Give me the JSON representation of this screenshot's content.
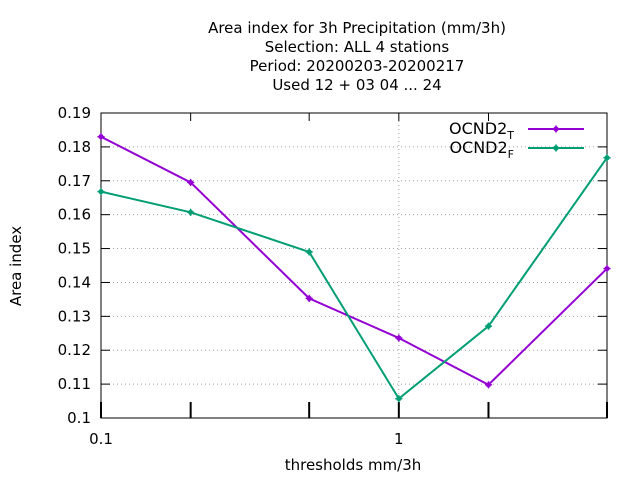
{
  "chart_data": {
    "type": "line",
    "title_lines": [
      "Area index  for 3h Precipitation (mm/3h)",
      "Selection: ALL      4 stations",
      "Period: 20200203-20200217",
      "Used  12 + 03 04 ... 24"
    ],
    "xlabel": "thresholds mm/3h",
    "ylabel": "Area index",
    "x_scale": "log",
    "xlim": [
      0.1,
      5
    ],
    "ylim": [
      0.1,
      0.19
    ],
    "yticks": [
      0.1,
      0.11,
      0.12,
      0.13,
      0.14,
      0.15,
      0.16,
      0.17,
      0.18,
      0.19
    ],
    "ytick_labels": [
      "0.1",
      "0.11",
      "0.12",
      "0.13",
      "0.14",
      "0.15",
      "0.16",
      "0.17",
      "0.18",
      "0.19"
    ],
    "xtick_labels": [
      {
        "value": 0.1,
        "label": "0.1"
      },
      {
        "value": 1,
        "label": "1"
      }
    ],
    "xtick_marks": [
      0.1,
      0.2,
      0.5,
      1,
      2,
      5
    ],
    "grid": {
      "x_at": [
        1
      ],
      "y": true
    },
    "legend_position": "top-right",
    "x": [
      0.1,
      0.2,
      0.5,
      1,
      2,
      5
    ],
    "series": [
      {
        "name": "OCND2",
        "subscript": "T",
        "color": "#9400d3",
        "values": [
          0.183,
          0.1695,
          0.1353,
          0.1236,
          0.1098,
          0.1441
        ]
      },
      {
        "name": "OCND2",
        "subscript": "F",
        "color": "#009e73",
        "values": [
          0.1668,
          0.1607,
          0.149,
          0.1057,
          0.1271,
          0.1768
        ]
      }
    ]
  }
}
